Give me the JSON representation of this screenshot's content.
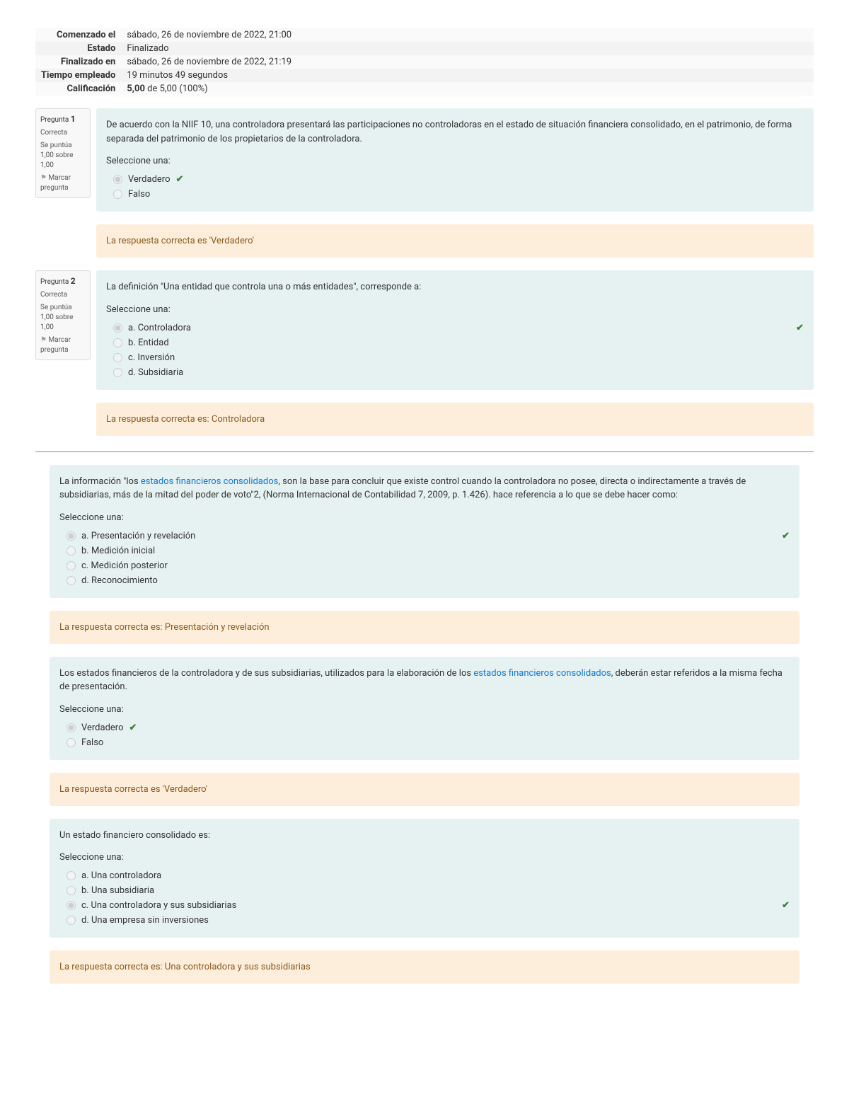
{
  "colors": {
    "formulation_bg": "#e6f2f1",
    "feedback_bg": "#fceedb",
    "feedback_text": "#8a5a1d",
    "correct_green": "#398439",
    "link": "#1177d1"
  },
  "summary": [
    {
      "label": "Comenzado el",
      "value": "sábado, 26 de noviembre de 2022, 21:00"
    },
    {
      "label": "Estado",
      "value": "Finalizado"
    },
    {
      "label": "Finalizado en",
      "value": "sábado, 26 de noviembre de 2022, 21:19"
    },
    {
      "label": "Tiempo empleado",
      "value": "19 minutos 49 segundos"
    },
    {
      "label": "Calificación",
      "value_strong": "5,00",
      "value_tail": " de 5,00 (100%)"
    }
  ],
  "info": {
    "q_prefix": "Pregunta ",
    "state": "Correcta",
    "grade": "Se puntúa 1,00 sobre 1,00",
    "flag": "Marcar pregunta"
  },
  "q1": {
    "number": "1",
    "text": "De acuerdo con la NIIF 10, una controladora presentará las participaciones no controladoras en el estado de situación financiera consolidado, en el patrimonio, de forma separada del patrimonio de los propietarios de la controladora.",
    "prompt": "Seleccione una:",
    "opts": {
      "a": {
        "label": "Verdadero",
        "selected": true,
        "correct": true
      },
      "b": {
        "label": "Falso",
        "selected": false,
        "correct": false
      }
    },
    "feedback": "La respuesta correcta es 'Verdadero'"
  },
  "q2": {
    "number": "2",
    "text": "La definición \"Una entidad que controla una o más entidades\", corresponde a:",
    "prompt": "Seleccione una:",
    "opts": {
      "a": {
        "label": "a. Controladora",
        "selected": true,
        "correct": true
      },
      "b": {
        "label": "b. Entidad",
        "selected": false,
        "correct": false
      },
      "c": {
        "label": "c. Inversión",
        "selected": false,
        "correct": false
      },
      "d": {
        "label": "d. Subsidiaria",
        "selected": false,
        "correct": false
      }
    },
    "feedback": "La respuesta correcta es: Controladora"
  },
  "q3": {
    "text_pre": "La información \"los ",
    "text_link": "estados financieros consolidados",
    "text_post": ", son la base para concluir que existe control cuando la controladora no posee, directa o indirectamente a través de subsidiarias, más de la mitad del poder de voto\"2, (Norma Internacional de Contabilidad 7, 2009, p. 1.426). hace referencia a lo que se debe hacer como:",
    "prompt": "Seleccione una:",
    "opts": {
      "a": {
        "label": "a. Presentación y revelación",
        "selected": true,
        "correct": true
      },
      "b": {
        "label": "b. Medición inicial",
        "selected": false,
        "correct": false
      },
      "c": {
        "label": "c. Medición posterior",
        "selected": false,
        "correct": false
      },
      "d": {
        "label": "d. Reconocimiento",
        "selected": false,
        "correct": false
      }
    },
    "feedback": "La respuesta correcta es: Presentación y revelación"
  },
  "q4": {
    "text_pre": "Los estados financieros de la controladora y de sus subsidiarias, utilizados para la elaboración de los ",
    "text_link": "estados financieros consolidados",
    "text_post": ", deberán estar referidos a la misma fecha de presentación.",
    "prompt": "Seleccione una:",
    "opts": {
      "a": {
        "label": "Verdadero",
        "selected": true,
        "correct": true
      },
      "b": {
        "label": "Falso",
        "selected": false,
        "correct": false
      }
    },
    "feedback": "La respuesta correcta es 'Verdadero'"
  },
  "q5": {
    "text": "Un estado financiero consolidado es:",
    "prompt": "Seleccione una:",
    "opts": {
      "a": {
        "label": "a. Una controladora",
        "selected": false,
        "correct": false
      },
      "b": {
        "label": "b. Una subsidiaria",
        "selected": false,
        "correct": false
      },
      "c": {
        "label": "c. Una controladora y sus subsidiarias",
        "selected": true,
        "correct": true
      },
      "d": {
        "label": "d. Una empresa sin inversiones",
        "selected": false,
        "correct": false
      }
    },
    "feedback": "La respuesta correcta es: Una controladora y sus subsidiarias"
  }
}
